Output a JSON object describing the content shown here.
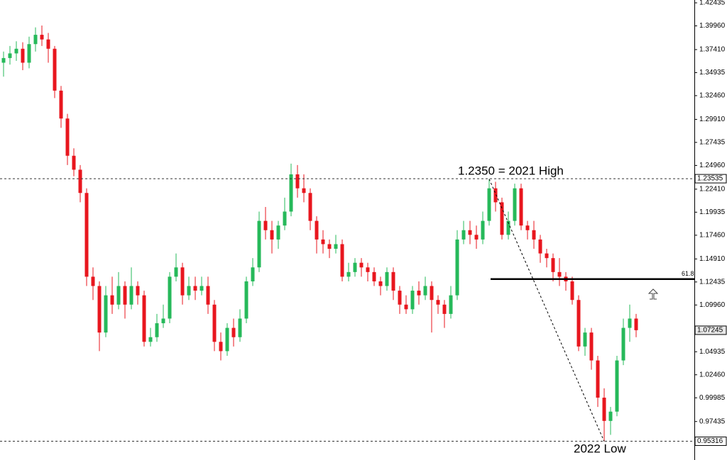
{
  "chart_data": {
    "type": "candlestick",
    "ylim": [
      0.933,
      1.4274
    ],
    "yticks": [
      1.42435,
      {
        "value": 1.3996,
        "label": "1.39960"
      },
      {
        "value": 1.3741,
        "label": "1.37410"
      },
      1.34935,
      {
        "value": 1.3246,
        "label": "1.32460"
      },
      {
        "value": 1.2991,
        "label": "1.29910"
      },
      1.27435,
      {
        "value": 1.2496,
        "label": "1.24960"
      },
      {
        "value": 1.2241,
        "label": "1.22410"
      },
      1.19935,
      {
        "value": 1.1746,
        "label": "1.17460"
      },
      {
        "value": 1.1491,
        "label": "1.14910"
      },
      1.12435,
      {
        "value": 1.0996,
        "label": "1.09960"
      },
      1.04935,
      {
        "value": 1.0246,
        "label": "1.02460"
      },
      0.99985,
      0.97435
    ],
    "up_color": "#26b95a",
    "down_color": "#e8161e",
    "open": [
      1.36,
      1.365,
      1.37,
      1.375,
      1.36,
      1.38,
      1.39,
      1.385,
      1.375,
      1.33,
      1.3,
      1.26,
      1.245,
      1.22,
      1.13,
      1.12,
      1.07,
      1.11,
      1.1,
      1.12,
      1.1,
      1.12,
      1.11,
      1.06,
      1.065,
      1.08,
      1.085,
      1.13,
      1.14,
      1.11,
      1.12,
      1.115,
      1.12,
      1.1,
      1.06,
      1.05,
      1.075,
      1.065,
      1.085,
      1.125,
      1.14,
      1.19,
      1.18,
      1.17,
      1.185,
      1.2,
      1.24,
      1.225,
      1.22,
      1.19,
      1.17,
      1.165,
      1.16,
      1.165,
      1.13,
      1.135,
      1.145,
      1.14,
      1.135,
      1.125,
      1.12,
      1.135,
      1.115,
      1.1,
      1.095,
      1.115,
      1.11,
      1.12,
      1.105,
      1.1,
      1.09,
      1.11,
      1.17,
      1.18,
      1.175,
      1.17,
      1.19,
      1.225,
      1.21,
      1.175,
      1.19,
      1.225,
      1.185,
      1.18,
      1.17,
      1.155,
      1.15,
      1.135,
      1.13,
      1.125,
      1.105,
      1.055,
      1.07,
      1.04,
      1.0,
      0.975,
      0.985,
      1.04,
      1.075,
      1.085
    ],
    "high": [
      1.372,
      1.378,
      1.383,
      1.382,
      1.388,
      1.398,
      1.4,
      1.392,
      1.378,
      1.335,
      1.305,
      1.268,
      1.25,
      1.225,
      1.14,
      1.125,
      1.12,
      1.13,
      1.135,
      1.125,
      1.14,
      1.125,
      1.115,
      1.075,
      1.09,
      1.1,
      1.135,
      1.155,
      1.145,
      1.13,
      1.13,
      1.13,
      1.13,
      1.105,
      1.07,
      1.08,
      1.085,
      1.095,
      1.13,
      1.15,
      1.2,
      1.205,
      1.19,
      1.19,
      1.215,
      1.2515,
      1.25,
      1.24,
      1.225,
      1.195,
      1.18,
      1.17,
      1.175,
      1.17,
      1.145,
      1.15,
      1.15,
      1.145,
      1.14,
      1.13,
      1.14,
      1.14,
      1.12,
      1.11,
      1.12,
      1.125,
      1.13,
      1.125,
      1.11,
      1.105,
      1.12,
      1.18,
      1.19,
      1.19,
      1.185,
      1.2,
      1.235,
      1.232,
      1.215,
      1.2,
      1.23,
      1.23,
      1.19,
      1.19,
      1.175,
      1.16,
      1.155,
      1.15,
      1.135,
      1.13,
      1.11,
      1.075,
      1.075,
      1.045,
      1.01,
      0.99,
      1.045,
      1.085,
      1.1,
      1.09
    ],
    "low": [
      1.345,
      1.358,
      1.362,
      1.352,
      1.354,
      1.372,
      1.378,
      1.36,
      1.322,
      1.29,
      1.25,
      1.238,
      1.21,
      1.12,
      1.105,
      1.05,
      1.065,
      1.09,
      1.095,
      1.085,
      1.095,
      1.1,
      1.055,
      1.055,
      1.06,
      1.075,
      1.08,
      1.125,
      1.1,
      1.105,
      1.105,
      1.11,
      1.09,
      1.05,
      1.04,
      1.045,
      1.055,
      1.06,
      1.08,
      1.12,
      1.135,
      1.17,
      1.155,
      1.16,
      1.18,
      1.195,
      1.215,
      1.21,
      1.18,
      1.155,
      1.155,
      1.15,
      1.155,
      1.125,
      1.125,
      1.13,
      1.13,
      1.125,
      1.12,
      1.11,
      1.115,
      1.105,
      1.09,
      1.09,
      1.09,
      1.1,
      1.105,
      1.07,
      1.09,
      1.075,
      1.085,
      1.105,
      1.165,
      1.165,
      1.16,
      1.165,
      1.185,
      1.2,
      1.17,
      1.17,
      1.185,
      1.18,
      1.17,
      1.16,
      1.145,
      1.14,
      1.125,
      1.12,
      1.115,
      1.1,
      1.05,
      1.045,
      1.03,
      0.99,
      0.953,
      0.96,
      0.98,
      1.035,
      1.06,
      1.065
    ],
    "close": [
      1.365,
      1.37,
      1.375,
      1.36,
      1.38,
      1.39,
      1.385,
      1.375,
      1.33,
      1.3,
      1.26,
      1.245,
      1.22,
      1.13,
      1.12,
      1.07,
      1.11,
      1.1,
      1.12,
      1.1,
      1.12,
      1.11,
      1.06,
      1.065,
      1.08,
      1.085,
      1.13,
      1.14,
      1.11,
      1.12,
      1.115,
      1.12,
      1.1,
      1.06,
      1.05,
      1.075,
      1.065,
      1.085,
      1.125,
      1.14,
      1.19,
      1.18,
      1.17,
      1.185,
      1.2,
      1.24,
      1.225,
      1.22,
      1.19,
      1.17,
      1.165,
      1.16,
      1.165,
      1.13,
      1.135,
      1.145,
      1.14,
      1.135,
      1.125,
      1.12,
      1.135,
      1.115,
      1.1,
      1.095,
      1.115,
      1.11,
      1.12,
      1.105,
      1.1,
      1.09,
      1.11,
      1.17,
      1.18,
      1.175,
      1.17,
      1.19,
      1.225,
      1.21,
      1.175,
      1.19,
      1.225,
      1.185,
      1.18,
      1.17,
      1.155,
      1.15,
      1.135,
      1.13,
      1.125,
      1.105,
      1.055,
      1.07,
      1.04,
      1.0,
      0.975,
      0.985,
      1.04,
      1.075,
      1.085,
      1.0725
    ],
    "price_lines": [
      {
        "value": 1.23535
      },
      {
        "value": 0.95316
      }
    ],
    "current_price": 1.07245,
    "fib_level": {
      "label": "61.8",
      "value": 1.1274
    },
    "annotations": [
      "1.2350 = 2021 High",
      "2022 Low"
    ]
  }
}
